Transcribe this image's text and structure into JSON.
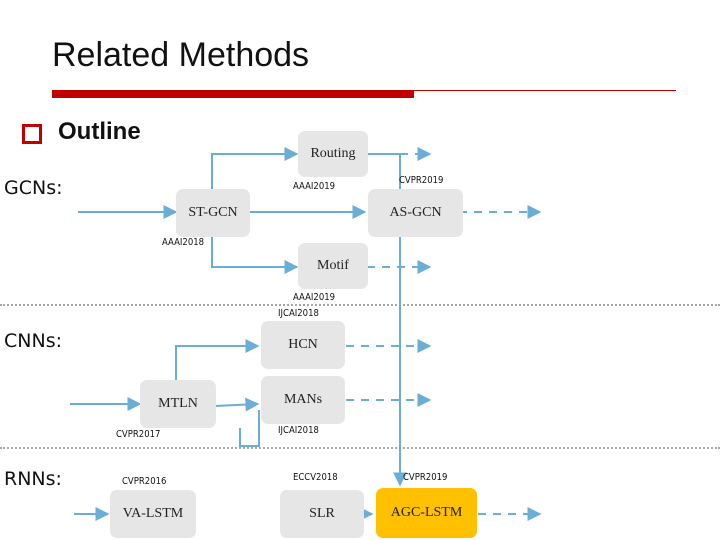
{
  "slide": {
    "title": "Related Methods",
    "outline_label": "Outline"
  },
  "sections": {
    "gcns": "GCNs:",
    "cnns": "CNNs:",
    "rnns": "RNNs:"
  },
  "nodes": {
    "routing": "Routing",
    "st_gcn": "ST-GCN",
    "as_gcn": "AS-GCN",
    "motif": "Motif",
    "hcn": "HCN",
    "mtln": "MTLN",
    "mans": "MANs",
    "va_lstm": "VA-LSTM",
    "slr": "SLR",
    "agc_lstm": "AGC-LSTM"
  },
  "venues": {
    "routing": "AAAI2019",
    "as_gcn": "CVPR2019",
    "st_gcn": "AAAI2018",
    "motif": "AAAI2019",
    "hcn": "IJCAI2018",
    "mtln": "CVPR2017",
    "mans": "IJCAI2018",
    "va_lstm": "CVPR2016",
    "slr": "ECCV2018",
    "agc_lstm": "CVPR2019"
  },
  "colors": {
    "accent": "#c00000",
    "connector": "#6aaed6",
    "node_fill": "#e6e6e6",
    "highlight_fill": "#ffc000"
  }
}
